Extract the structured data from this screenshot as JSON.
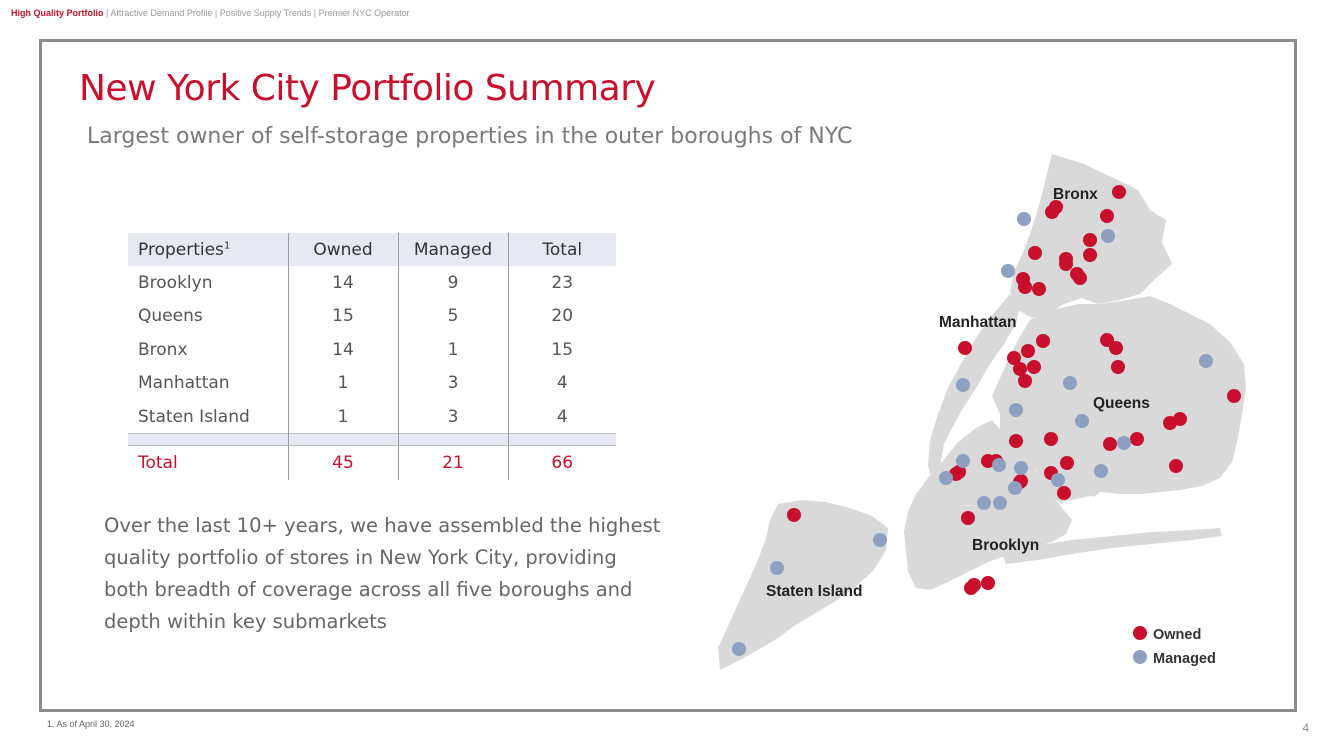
{
  "header": {
    "highlight": "High Quality Portfolio",
    "rest": " | Attractive Demand Profile | Positive Supply Trends | Premier NYC Operator"
  },
  "slide": {
    "title": "New York City Portfolio Summary",
    "subtitle": "Largest owner of self-storage properties in the outer boroughs of NYC"
  },
  "table": {
    "headers": {
      "properties": "Properties",
      "properties_sup": "1",
      "owned": "Owned",
      "managed": "Managed",
      "total": "Total"
    },
    "rows": [
      {
        "name": "Brooklyn",
        "owned": "14",
        "managed": "9",
        "total": "23"
      },
      {
        "name": "Queens",
        "owned": "15",
        "managed": "5",
        "total": "20"
      },
      {
        "name": "Bronx",
        "owned": "14",
        "managed": "1",
        "total": "15"
      },
      {
        "name": "Manhattan",
        "owned": "1",
        "managed": "3",
        "total": "4"
      },
      {
        "name": "Staten Island",
        "owned": "1",
        "managed": "3",
        "total": "4"
      }
    ],
    "total": {
      "name": "Total",
      "owned": "45",
      "managed": "21",
      "total": "66"
    }
  },
  "paragraph": "Over the last 10+ years, we have assembled the highest quality portfolio of stores in New York City, providing both breadth of coverage across all five boroughs and depth within key submarkets",
  "map": {
    "labels": {
      "bronx": "Bronx",
      "manhattan": "Manhattan",
      "queens": "Queens",
      "brooklyn": "Brooklyn",
      "staten_island": "Staten Island"
    },
    "legend": {
      "owned": "Owned",
      "managed": "Managed"
    },
    "colors": {
      "owned": "#c8102e",
      "managed": "#8da0bf",
      "land": "#d9d9d9"
    }
  },
  "footnote": "1.   As of April 30, 2024",
  "page_number": "4"
}
